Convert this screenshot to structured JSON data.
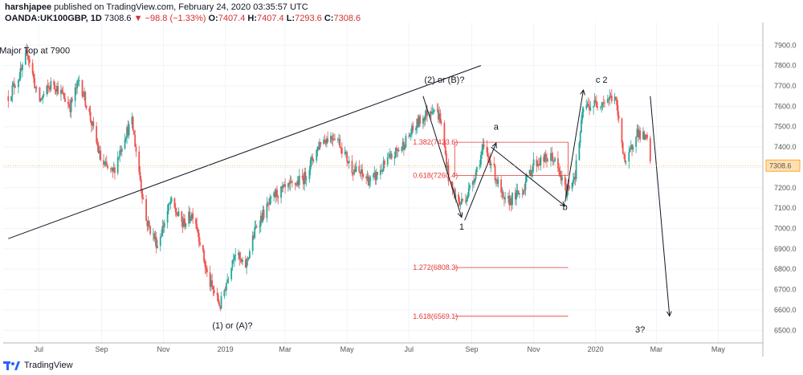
{
  "header": {
    "author": "harshjapee",
    "published_text": "published on TradingView.com, February 24, 2020 03:35:57 UTC",
    "symbol": "OANDA:UK100GBP, 1D",
    "last": "7308.6",
    "change": "−98.8 (−1.33%)",
    "open_label": "O:",
    "open": "7407.4",
    "high_label": "H:",
    "high": "7407.4",
    "low_label": "L:",
    "low": "7293.6",
    "close_label": "C:",
    "close": "7308.6"
  },
  "footer": {
    "brand": "TradingView"
  },
  "colors": {
    "up": "#26a69a",
    "down": "#ef5350",
    "fib": "#e53935",
    "lastline": "#ffa726"
  },
  "chart_data": {
    "type": "candlestick",
    "title": "",
    "xlabel": "",
    "ylabel": "",
    "ylim": [
      6450,
      7980
    ],
    "yticks": [
      "7900.0",
      "7800.0",
      "7700.0",
      "7600.0",
      "7500.0",
      "7400.0",
      "7300.0",
      "7200.0",
      "7100.0",
      "7000.0",
      "6900.0",
      "6800.0",
      "6700.0",
      "6600.0",
      "6500.0"
    ],
    "xticks": [
      "Jul",
      "Sep",
      "Nov",
      "2019",
      "Mar",
      "May",
      "Jul",
      "Sep",
      "Nov",
      "2020",
      "Mar",
      "May"
    ],
    "last_price_label": "7308.6",
    "price_path": [
      [
        "2018-06-01",
        7650
      ],
      [
        "2018-06-15",
        7780
      ],
      [
        "2018-06-20",
        7870
      ],
      [
        "2018-07-01",
        7620
      ],
      [
        "2018-07-15",
        7720
      ],
      [
        "2018-08-01",
        7600
      ],
      [
        "2018-08-10",
        7730
      ],
      [
        "2018-08-20",
        7560
      ],
      [
        "2018-09-01",
        7320
      ],
      [
        "2018-09-12",
        7270
      ],
      [
        "2018-09-24",
        7460
      ],
      [
        "2018-10-01",
        7520
      ],
      [
        "2018-10-15",
        7040
      ],
      [
        "2018-10-26",
        6920
      ],
      [
        "2018-11-08",
        7130
      ],
      [
        "2018-11-20",
        7020
      ],
      [
        "2018-12-01",
        7080
      ],
      [
        "2018-12-15",
        6750
      ],
      [
        "2018-12-27",
        6620
      ],
      [
        "2019-01-10",
        6890
      ],
      [
        "2019-01-20",
        6800
      ],
      [
        "2019-02-01",
        7020
      ],
      [
        "2019-02-20",
        7170
      ],
      [
        "2019-03-05",
        7200
      ],
      [
        "2019-03-20",
        7250
      ],
      [
        "2019-04-05",
        7430
      ],
      [
        "2019-04-20",
        7460
      ],
      [
        "2019-05-05",
        7300
      ],
      [
        "2019-05-25",
        7230
      ],
      [
        "2019-06-10",
        7330
      ],
      [
        "2019-06-25",
        7410
      ],
      [
        "2019-07-10",
        7520
      ],
      [
        "2019-07-25",
        7600
      ],
      [
        "2019-08-01",
        7540
      ],
      [
        "2019-08-10",
        7220
      ],
      [
        "2019-08-20",
        7120
      ],
      [
        "2019-08-28",
        7170
      ],
      [
        "2019-09-05",
        7280
      ],
      [
        "2019-09-12",
        7390
      ],
      [
        "2019-09-20",
        7330
      ],
      [
        "2019-10-03",
        7120
      ],
      [
        "2019-10-20",
        7180
      ],
      [
        "2019-11-01",
        7320
      ],
      [
        "2019-11-20",
        7350
      ],
      [
        "2019-12-03",
        7180
      ],
      [
        "2019-12-12",
        7270
      ],
      [
        "2019-12-20",
        7590
      ],
      [
        "2020-01-05",
        7620
      ],
      [
        "2020-01-20",
        7650
      ],
      [
        "2020-01-31",
        7300
      ],
      [
        "2020-02-10",
        7480
      ],
      [
        "2020-02-21",
        7430
      ],
      [
        "2020-02-24",
        7308.6
      ]
    ],
    "fib_levels": [
      {
        "label": "1.382(7423.6)",
        "value": 7423.6
      },
      {
        "label": "0.618(7260.4)",
        "value": 7260.4
      },
      {
        "label": "1.272(6808.3)",
        "value": 6808.3
      },
      {
        "label": "1.618(6569.1)",
        "value": 6569.1
      }
    ],
    "annotations": [
      {
        "text": "Major Top at 7900",
        "date": "2018-06-27",
        "price": 7860
      },
      {
        "text": "(2) or (B)?",
        "date": "2019-08-05",
        "price": 7715
      },
      {
        "text": "a",
        "date": "2019-09-25",
        "price": 7485
      },
      {
        "text": "1",
        "date": "2019-08-22",
        "price": 6995
      },
      {
        "text": "b",
        "date": "2019-12-02",
        "price": 7090
      },
      {
        "text": "c 2",
        "date": "2020-01-07",
        "price": 7715
      },
      {
        "text": "(1) or (A)?",
        "date": "2019-01-08",
        "price": 6510
      },
      {
        "text": "3?",
        "date": "2020-02-14",
        "price": 6490
      }
    ],
    "trendlines": [
      {
        "from": [
          "2018-06-01",
          6950
        ],
        "to": [
          "2019-09-10",
          7800
        ]
      },
      {
        "from": [
          "2019-07-15",
          7650
        ],
        "to": [
          "2019-08-22",
          7055
        ]
      },
      {
        "from": [
          "2019-08-25",
          7040
        ],
        "to": [
          "2019-09-25",
          7420
        ]
      },
      {
        "from": [
          "2019-09-20",
          7400
        ],
        "to": [
          "2019-12-02",
          7110
        ]
      },
      {
        "from": [
          "2019-12-02",
          7130
        ],
        "to": [
          "2019-12-20",
          7680
        ]
      },
      {
        "from": [
          "2020-02-24",
          7650
        ],
        "to": [
          "2020-03-14",
          6570
        ]
      }
    ]
  }
}
